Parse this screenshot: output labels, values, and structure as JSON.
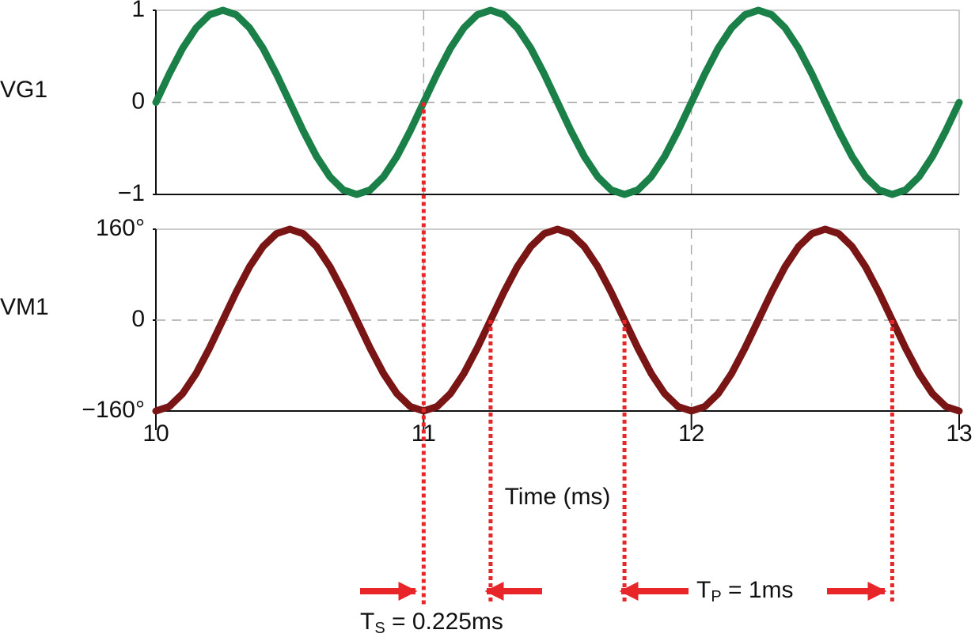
{
  "chart_data": [
    {
      "type": "line",
      "x": [
        10,
        10.05,
        10.1,
        10.15,
        10.2,
        10.25,
        10.3,
        10.35,
        10.4,
        10.45,
        10.5,
        10.55,
        10.6,
        10.65,
        10.7,
        10.75,
        10.8,
        10.85,
        10.9,
        10.95,
        11,
        11.05,
        11.1,
        11.15,
        11.2,
        11.25,
        11.3,
        11.35,
        11.4,
        11.45,
        11.5,
        11.55,
        11.6,
        11.65,
        11.7,
        11.75,
        11.8,
        11.85,
        11.9,
        11.95,
        12,
        12.05,
        12.1,
        12.15,
        12.2,
        12.25,
        12.3,
        12.35,
        12.4,
        12.45,
        12.5,
        12.55,
        12.6,
        12.65,
        12.7,
        12.75,
        12.8,
        12.85,
        12.9,
        12.95,
        13
      ],
      "series": [
        {
          "name": "VG1",
          "color": "#1a8048",
          "values": [
            0,
            0.309,
            0.588,
            0.809,
            0.951,
            1,
            0.951,
            0.809,
            0.588,
            0.309,
            0,
            -0.309,
            -0.588,
            -0.809,
            -0.951,
            -1,
            -0.951,
            -0.809,
            -0.588,
            -0.309,
            0,
            0.309,
            0.588,
            0.809,
            0.951,
            1,
            0.951,
            0.809,
            0.588,
            0.309,
            0,
            -0.309,
            -0.588,
            -0.809,
            -0.951,
            -1,
            -0.951,
            -0.809,
            -0.588,
            -0.309,
            0,
            0.309,
            0.588,
            0.809,
            0.951,
            1,
            0.951,
            0.809,
            0.588,
            0.309,
            0,
            -0.309,
            -0.588,
            -0.809,
            -0.951,
            -1,
            -0.951,
            -0.809,
            -0.588,
            -0.309,
            0
          ]
        }
      ],
      "xlim": [
        10,
        13
      ],
      "ylim": [
        -1,
        1
      ],
      "yticks": [
        {
          "value": -1,
          "label": "−1"
        },
        0,
        1
      ],
      "label_color": "#111111",
      "grid": true
    },
    {
      "type": "line",
      "x": [
        10,
        10.05,
        10.1,
        10.15,
        10.2,
        10.25,
        10.3,
        10.35,
        10.4,
        10.45,
        10.5,
        10.55,
        10.6,
        10.65,
        10.7,
        10.75,
        10.8,
        10.85,
        10.9,
        10.95,
        11,
        11.05,
        11.1,
        11.15,
        11.2,
        11.25,
        11.3,
        11.35,
        11.4,
        11.45,
        11.5,
        11.55,
        11.6,
        11.65,
        11.7,
        11.75,
        11.8,
        11.85,
        11.9,
        11.95,
        12,
        12.05,
        12.1,
        12.15,
        12.2,
        12.25,
        12.3,
        12.35,
        12.4,
        12.45,
        12.5,
        12.55,
        12.6,
        12.65,
        12.7,
        12.75,
        12.8,
        12.85,
        12.9,
        12.95,
        13
      ],
      "series": [
        {
          "name": "VM1",
          "color": "#7a1515",
          "values": [
            -160,
            -152.2,
            -129.4,
            -94,
            -49.4,
            0,
            49.4,
            94,
            129.4,
            152.2,
            160,
            152.2,
            129.4,
            94,
            49.4,
            0,
            -49.4,
            -94,
            -129.4,
            -152.2,
            -160,
            -152.2,
            -129.4,
            -94,
            -49.4,
            0,
            49.4,
            94,
            129.4,
            152.2,
            160,
            152.2,
            129.4,
            94,
            49.4,
            0,
            -49.4,
            -94,
            -129.4,
            -152.2,
            -160,
            -152.2,
            -129.4,
            -94,
            -49.4,
            0,
            49.4,
            94,
            129.4,
            152.2,
            160,
            152.2,
            129.4,
            94,
            49.4,
            0,
            -49.4,
            -94,
            -129.4,
            -152.2,
            -160
          ]
        }
      ],
      "xlim": [
        10,
        13
      ],
      "xticks": [
        10,
        11,
        12,
        13
      ],
      "ylim": [
        -160,
        160
      ],
      "yticks": [
        {
          "value": -160,
          "label": "−160°"
        },
        0,
        {
          "value": 160,
          "label": "160°"
        }
      ],
      "xlabel": "Time (ms)",
      "label_color": "#7a1515",
      "grid": true,
      "reference_lines_x": [
        11,
        11.25,
        11.75,
        12.75
      ],
      "annotations": [
        {
          "main": "T",
          "sub": "S",
          "rest": " = 0.225ms"
        },
        {
          "main": "T",
          "sub": "P",
          "rest": " = 1ms"
        }
      ]
    }
  ]
}
